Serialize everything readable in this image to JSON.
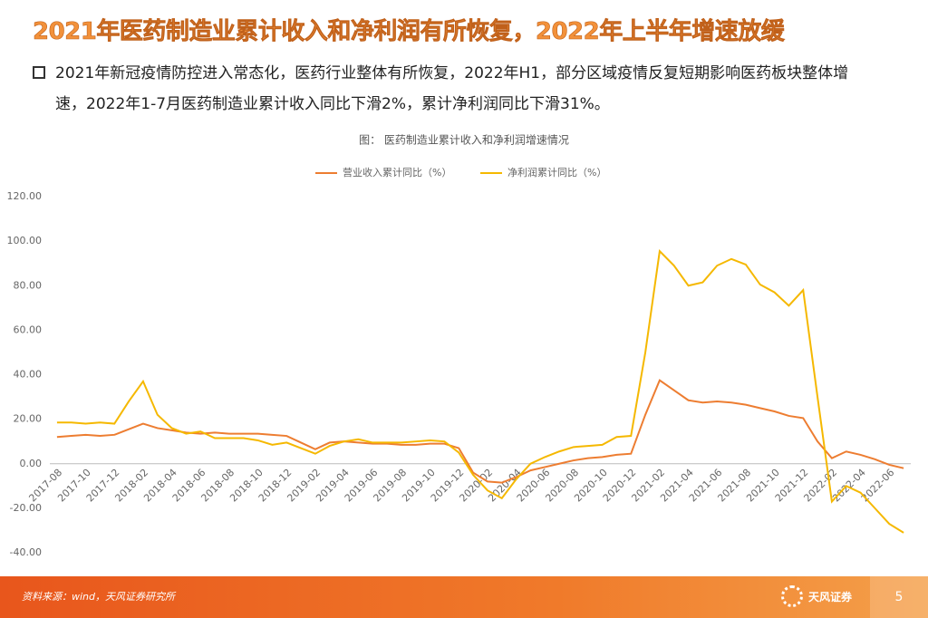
{
  "header": {
    "title": "2021年医药制造业累计收入和净利润有所恢复，2022年上半年增速放缓"
  },
  "bullet": "2021年新冠疫情防控进入常态化，医药行业整体有所恢复，2022年H1，部分区域疫情反复短期影响医药板块整体增速，2022年1-7月医药制造业累计收入同比下滑2%，累计净利润同比下滑31%。",
  "footer": {
    "source": "资料来源：wind，天风证券研究所",
    "logo": "天风证券",
    "page_number": "5"
  },
  "chart_data": {
    "type": "line",
    "title": "图：  医药制造业累计收入和净利润增速情况",
    "categories": [
      "2017-08",
      null,
      "2017-10",
      null,
      "2017-12",
      null,
      "2018-02",
      null,
      "2018-04",
      null,
      "2018-06",
      null,
      "2018-08",
      null,
      "2018-10",
      null,
      "2018-12",
      null,
      "2019-02",
      null,
      "2019-04",
      null,
      "2019-06",
      null,
      "2019-08",
      null,
      "2019-10",
      null,
      "2019-12",
      null,
      "2020-02",
      null,
      "2020-04",
      null,
      "2020-06",
      null,
      "2020-08",
      null,
      "2020-10",
      null,
      "2020-12",
      null,
      "2021-02",
      null,
      "2021-04",
      null,
      "2021-06",
      null,
      "2021-08",
      null,
      "2021-10",
      null,
      "2021-12",
      null,
      "2022-02",
      null,
      "2022-04",
      null,
      "2022-06",
      null
    ],
    "series": [
      {
        "name": "营业收入累计同比（%）",
        "color": "#ed7d31",
        "values": [
          12,
          12.5,
          13,
          12.5,
          13,
          15.5,
          18,
          16,
          15,
          14,
          13.5,
          14,
          13.5,
          13.5,
          13.5,
          13,
          12.5,
          9.5,
          6.5,
          9.5,
          10,
          9.5,
          9,
          9,
          8.5,
          8.5,
          9,
          9,
          7,
          -4,
          -8,
          -8.5,
          -6,
          -3,
          -1.5,
          0,
          1.5,
          2.5,
          3,
          4,
          4.5,
          22,
          37.5,
          33,
          28.5,
          27.5,
          28,
          27.5,
          26.5,
          25,
          23.5,
          21.5,
          20.5,
          10,
          2.5,
          5.5,
          4,
          2,
          -0.5,
          -2
        ]
      },
      {
        "name": "净利润累计同比（%）",
        "color": "#f5b800",
        "values": [
          18.5,
          18.5,
          18,
          18.5,
          18,
          28,
          37,
          22,
          16,
          13.5,
          14.5,
          11.5,
          11.5,
          11.5,
          10.5,
          8.5,
          9.5,
          7,
          4.5,
          8,
          10,
          11,
          9.5,
          9.5,
          9.5,
          10,
          10.5,
          10,
          5,
          -5,
          -12,
          -15.5,
          -7,
          0,
          3,
          5.5,
          7.5,
          8,
          8.5,
          12,
          12.5,
          50,
          95.5,
          89,
          80,
          81.5,
          89,
          92,
          89.5,
          80.5,
          77,
          71,
          78,
          30,
          -17,
          -10,
          -13,
          -20,
          -27,
          -31
        ]
      }
    ],
    "ylim": [
      -40,
      120
    ],
    "yticks": [
      {
        "value": -40,
        "label": "-40.00"
      },
      {
        "value": -20,
        "label": "-20.00"
      },
      {
        "value": 0,
        "label": "0.00"
      },
      {
        "value": 20,
        "label": "20.00"
      },
      {
        "value": 40,
        "label": "40.00"
      },
      {
        "value": 60,
        "label": "60.00"
      },
      {
        "value": 80,
        "label": "80.00"
      },
      {
        "value": 100,
        "label": "100.00"
      },
      {
        "value": 120,
        "label": "120.00"
      }
    ],
    "grid": false,
    "legend": "top"
  }
}
